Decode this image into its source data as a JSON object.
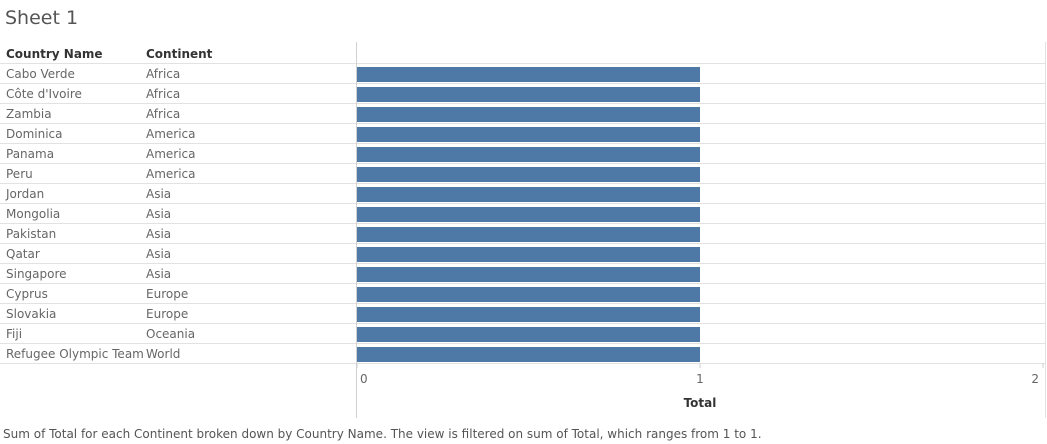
{
  "sheet": {
    "title": "Sheet 1"
  },
  "columns": {
    "country": "Country Name",
    "continent": "Continent"
  },
  "caption": "Sum of Total for each Continent broken down by Country Name. The view is filtered on sum of Total, which ranges from 1 to 1.",
  "colors": {
    "bar": "#4e79a7",
    "grid": "#e2e2e2",
    "axis": "#d0d0d0"
  },
  "chart_data": {
    "type": "bar",
    "orientation": "horizontal",
    "categories": [
      {
        "country": "Cabo Verde",
        "continent": "Africa"
      },
      {
        "country": "Côte d'Ivoire",
        "continent": "Africa"
      },
      {
        "country": "Zambia",
        "continent": "Africa"
      },
      {
        "country": "Dominica",
        "continent": "America"
      },
      {
        "country": "Panama",
        "continent": "America"
      },
      {
        "country": "Peru",
        "continent": "America"
      },
      {
        "country": "Jordan",
        "continent": "Asia"
      },
      {
        "country": "Mongolia",
        "continent": "Asia"
      },
      {
        "country": "Pakistan",
        "continent": "Asia"
      },
      {
        "country": "Qatar",
        "continent": "Asia"
      },
      {
        "country": "Singapore",
        "continent": "Asia"
      },
      {
        "country": "Cyprus",
        "continent": "Europe"
      },
      {
        "country": "Slovakia",
        "continent": "Europe"
      },
      {
        "country": "Fiji",
        "continent": "Oceania"
      },
      {
        "country": "Refugee Olympic Team",
        "continent": "World"
      }
    ],
    "values": [
      1,
      1,
      1,
      1,
      1,
      1,
      1,
      1,
      1,
      1,
      1,
      1,
      1,
      1,
      1
    ],
    "xlabel": "Total",
    "xlim": [
      0,
      2
    ],
    "xticks": [
      "0",
      "1",
      "2"
    ]
  }
}
